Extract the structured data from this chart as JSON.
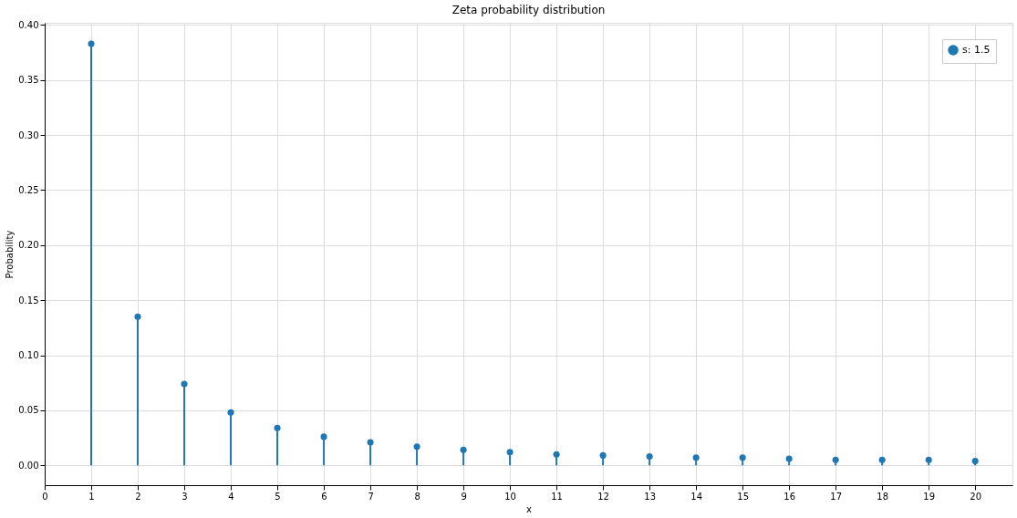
{
  "chart_data": {
    "type": "lollipop",
    "title": "Zeta probability distribution",
    "xlabel": "x",
    "ylabel": "Probability",
    "x": [
      1,
      2,
      3,
      4,
      5,
      6,
      7,
      8,
      9,
      10,
      11,
      12,
      13,
      14,
      15,
      16,
      17,
      18,
      19,
      20
    ],
    "series": [
      {
        "name": "s: 1.5",
        "color": "#1f77b4",
        "values": [
          0.383,
          0.135,
          0.074,
          0.048,
          0.034,
          0.026,
          0.021,
          0.017,
          0.014,
          0.012,
          0.01,
          0.009,
          0.008,
          0.007,
          0.007,
          0.006,
          0.005,
          0.005,
          0.005,
          0.004
        ]
      }
    ],
    "xlim": [
      0,
      20.8
    ],
    "xticks": [
      0,
      1,
      2,
      3,
      4,
      5,
      6,
      7,
      8,
      9,
      10,
      11,
      12,
      13,
      14,
      15,
      16,
      17,
      18,
      19,
      20
    ],
    "ylim": [
      -0.018,
      0.402
    ],
    "yticks": [
      {
        "value": 0,
        "label": "0.00"
      },
      0.05,
      {
        "value": 0.1,
        "label": "0.10"
      },
      0.15,
      {
        "value": 0.2,
        "label": "0.20"
      },
      0.25,
      {
        "value": 0.3,
        "label": "0.30"
      },
      0.35,
      {
        "value": 0.4,
        "label": "0.40"
      }
    ],
    "grid": true,
    "legend": "top right",
    "marker": "circle"
  }
}
